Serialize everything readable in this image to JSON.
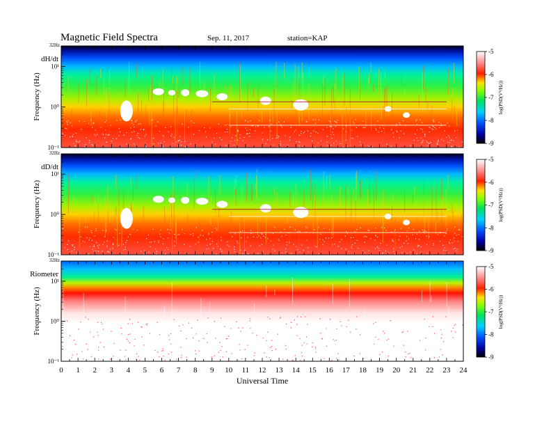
{
  "header": {
    "title": "Magnetic Field Spectra",
    "date": "Sep. 11, 2017",
    "station": "station=KAP"
  },
  "chart_data": [
    {
      "type": "heatmap",
      "panel_label": "dH/dt",
      "ylabel": "Frequency (Hz)",
      "top_freq_label": "32Hz",
      "y_scale": "log",
      "ytick_labels": [
        "10¹",
        "10⁰",
        "10⁻¹"
      ],
      "x_range": [
        0,
        24
      ],
      "colorbar": {
        "label": "log(PSD(V²/Hz))",
        "range": [
          -9,
          -5
        ],
        "ticks": [
          "-5",
          "-6",
          "-7",
          "-8",
          "-9"
        ]
      }
    },
    {
      "type": "heatmap",
      "panel_label": "dD/dt",
      "ylabel": "Frequency (Hz)",
      "top_freq_label": "32Hz",
      "y_scale": "log",
      "ytick_labels": [
        "10¹",
        "10⁰",
        "10⁻¹"
      ],
      "x_range": [
        0,
        24
      ],
      "colorbar": {
        "label": "log(PSD(V²/Hz))",
        "range": [
          -9,
          -5
        ],
        "ticks": [
          "-5",
          "-6",
          "-7",
          "-8",
          "-9"
        ]
      }
    },
    {
      "type": "heatmap",
      "panel_label": "Riometer",
      "ylabel": "Frequency (Hz)",
      "top_freq_label": "32Hz",
      "y_scale": "log",
      "ytick_labels": [
        "10¹",
        "10⁰",
        "10⁻¹"
      ],
      "x_range": [
        0,
        24
      ],
      "xlabel": "Universal Time",
      "xtick_labels": [
        "0",
        "1",
        "2",
        "3",
        "4",
        "5",
        "6",
        "7",
        "8",
        "9",
        "10",
        "11",
        "12",
        "13",
        "14",
        "15",
        "16",
        "17",
        "18",
        "19",
        "20",
        "21",
        "22",
        "23",
        "24"
      ],
      "colorbar": {
        "label": "log(PSD(V²/Hz))",
        "range": [
          -9,
          -5
        ],
        "ticks": [
          "-5",
          "-6",
          "-7",
          "-8",
          "-9"
        ]
      }
    }
  ]
}
